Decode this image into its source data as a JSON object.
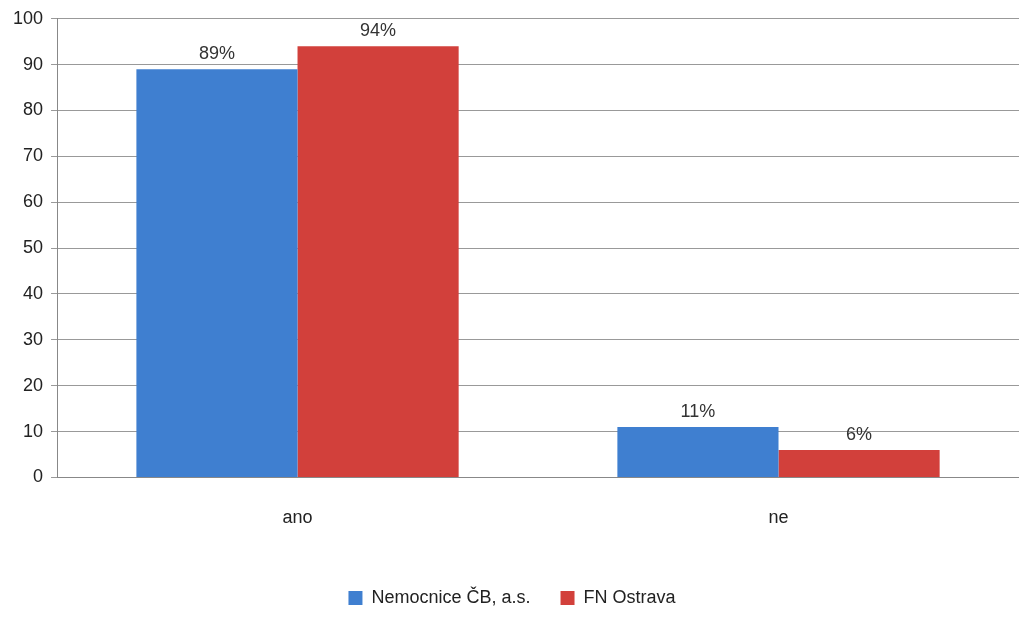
{
  "chart_data": {
    "type": "bar",
    "categories": [
      "ano",
      "ne"
    ],
    "series": [
      {
        "name": "Nemocnice ČB, a.s.",
        "color": "#3f7fd0",
        "values": [
          89,
          11
        ],
        "value_labels": [
          "89%",
          "11%"
        ]
      },
      {
        "name": "FN Ostrava",
        "color": "#d2403b",
        "values": [
          94,
          6
        ],
        "value_labels": [
          "94%",
          "6%"
        ]
      }
    ],
    "ylim": [
      0,
      100
    ],
    "yticks": [
      0,
      10,
      20,
      30,
      40,
      50,
      60,
      70,
      80,
      90,
      100
    ],
    "grid": "y",
    "legend": "bottom"
  }
}
